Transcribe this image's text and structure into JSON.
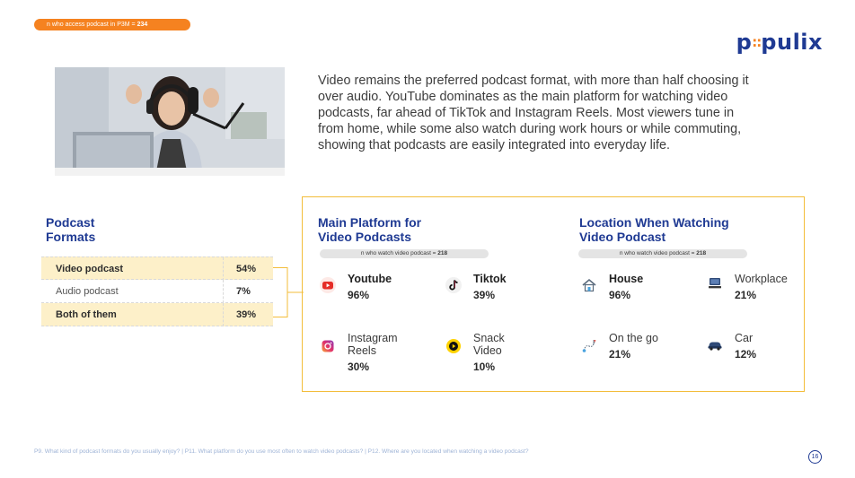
{
  "sample": {
    "prefix": "n who access podcast in P3M = ",
    "value": "234"
  },
  "brand": {
    "left": "p",
    "dots": "::",
    "right": "pulix",
    "color": "#1f3a93",
    "accent": "#f58220"
  },
  "intro": "Video remains the preferred podcast format, with more than half choosing it over audio. YouTube dominates as the main platform for watching video podcasts, far ahead of TikTok and Instagram Reels. Most viewers tune in from home, while some also watch during work hours or while commuting, showing that podcasts are easily integrated into everyday life.",
  "formats": {
    "title_line1": "Podcast",
    "title_line2": "Formats",
    "rows": [
      {
        "label": "Video podcast",
        "value": "54%"
      },
      {
        "label": "Audio podcast",
        "value": "7%"
      },
      {
        "label": "Both of them",
        "value": "39%"
      }
    ]
  },
  "platform": {
    "title_line1": "Main Platform for",
    "title_line2": "Video Podcasts",
    "n_prefix": "n who watch video podcast = ",
    "n_value": "218",
    "items": [
      {
        "name1": "Youtube",
        "name2": "",
        "value": "96%",
        "icon": "youtube-icon"
      },
      {
        "name1": "Tiktok",
        "name2": "",
        "value": "39%",
        "icon": "tiktok-icon"
      },
      {
        "name1": "Instagram",
        "name2": "Reels",
        "value": "30%",
        "icon": "instagram-icon"
      },
      {
        "name1": "Snack",
        "name2": "Video",
        "value": "10%",
        "icon": "snack-video-icon"
      }
    ]
  },
  "location": {
    "title_line1": "Location When Watching",
    "title_line2": "Video Podcast",
    "n_prefix": "n who watch video podcast = ",
    "n_value": "218",
    "items": [
      {
        "name1": "House",
        "name2": "",
        "value": "96%",
        "icon": "house-icon"
      },
      {
        "name1": "Workplace",
        "name2": "",
        "value": "21%",
        "icon": "workplace-icon"
      },
      {
        "name1": "On the go",
        "name2": "",
        "value": "21%",
        "icon": "on-the-go-icon"
      },
      {
        "name1": "Car",
        "name2": "",
        "value": "12%",
        "icon": "car-icon"
      }
    ]
  },
  "footnote": "P9. What kind of podcast formats do you usually enjoy? | P11. What platform do you use most often to watch video podcasts? | P12. Where are you located when watching a video podcast?",
  "page_number": "16"
}
